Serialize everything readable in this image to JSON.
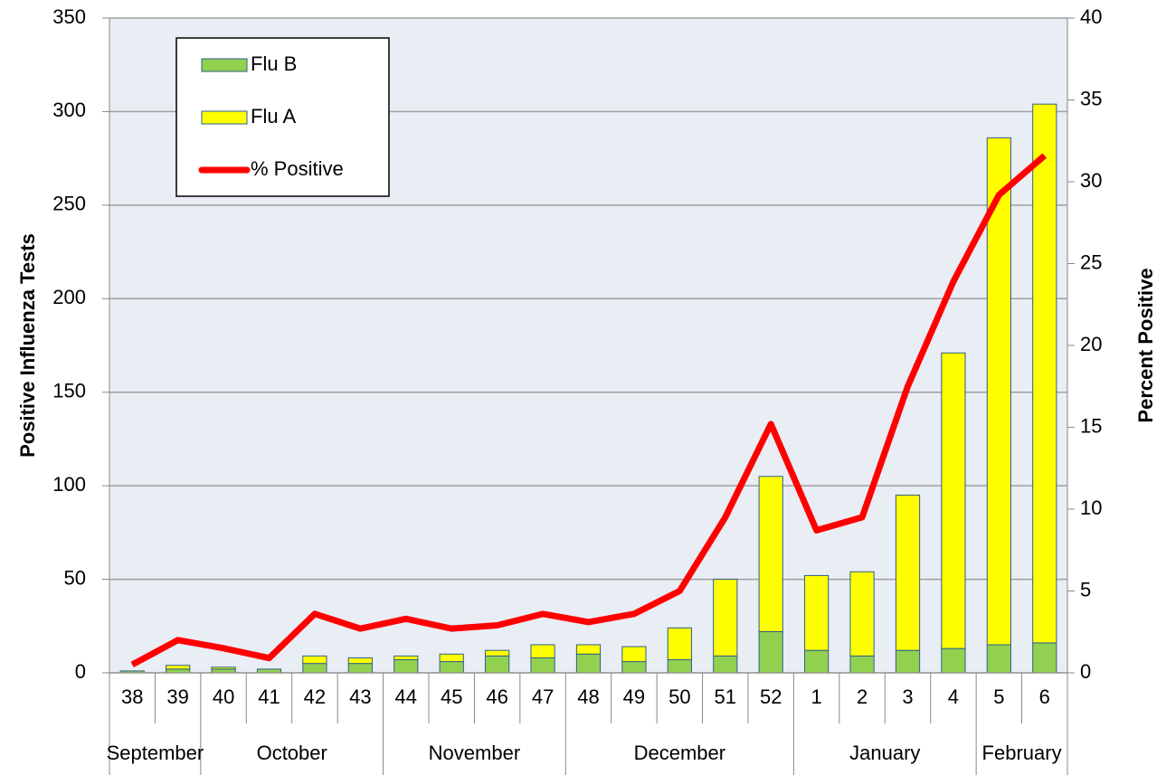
{
  "chart_data": {
    "type": "bar",
    "categories": [
      "38",
      "39",
      "40",
      "41",
      "42",
      "43",
      "44",
      "45",
      "46",
      "47",
      "48",
      "49",
      "50",
      "51",
      "52",
      "1",
      "2",
      "3",
      "4",
      "5",
      "6"
    ],
    "months": [
      "September",
      null,
      "October",
      null,
      null,
      null,
      "November",
      null,
      null,
      null,
      "December",
      null,
      null,
      null,
      null,
      "January",
      null,
      null,
      null,
      "February",
      null
    ],
    "y_label": "Positive Influenza Tests",
    "y2_label": "Percent Positive",
    "ylim": [
      0,
      350
    ],
    "yticks": [
      0,
      50,
      100,
      150,
      200,
      250,
      300,
      350
    ],
    "y2lim": [
      0,
      40
    ],
    "y2ticks": [
      0,
      5,
      10,
      15,
      20,
      25,
      30,
      35,
      40
    ],
    "grid": true,
    "legend": "upper left",
    "stacked": true,
    "series": [
      {
        "name": "Flu B",
        "type": "bar",
        "color": "#92d050",
        "values": [
          1,
          2,
          2,
          2,
          5,
          5,
          7,
          6,
          9,
          8,
          10,
          6,
          7,
          9,
          22,
          12,
          9,
          12,
          13,
          15,
          16
        ]
      },
      {
        "name": "Flu A",
        "type": "bar",
        "color": "#ffff00",
        "values": [
          0,
          2,
          1,
          0,
          4,
          3,
          2,
          4,
          3,
          7,
          5,
          8,
          17,
          41,
          83,
          40,
          45,
          83,
          158,
          271,
          288
        ]
      },
      {
        "name": "% Positive",
        "type": "line",
        "axis": "y2",
        "color": "#ff0000",
        "values": [
          0.5,
          2.0,
          1.5,
          0.9,
          3.6,
          2.7,
          3.3,
          2.7,
          2.9,
          3.6,
          3.1,
          3.6,
          5.0,
          9.5,
          15.2,
          8.7,
          9.5,
          17.5,
          23.9,
          29.2,
          31.6
        ]
      }
    ]
  }
}
